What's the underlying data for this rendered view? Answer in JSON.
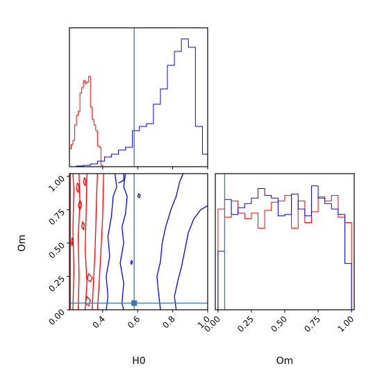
{
  "chart_data": [
    {
      "type": "histogram",
      "panel": "H0-marginal",
      "xlim": [
        0.21,
        1.0
      ],
      "ylim": [
        0,
        1
      ],
      "y_ticks_shown": false,
      "truth": 0.58,
      "series": [
        {
          "name": "",
          "color": "#ff0000",
          "bins": [
            0.21,
            0.22,
            0.23,
            0.24,
            0.25,
            0.26,
            0.27,
            0.28,
            0.29,
            0.3,
            0.31,
            0.32,
            0.33,
            0.34,
            0.35,
            0.36,
            0.37,
            0.38,
            0.39,
            0.4
          ],
          "heights": [
            0.13,
            0.16,
            0.19,
            0.3,
            0.37,
            0.4,
            0.53,
            0.57,
            0.62,
            0.6,
            0.61,
            0.65,
            0.43,
            0.34,
            0.3,
            0.26,
            0.15,
            0.14,
            0.01
          ]
        },
        {
          "name": "",
          "color": "#0000ff",
          "bins": [
            0.21,
            0.25,
            0.29,
            0.33,
            0.37,
            0.41,
            0.45,
            0.49,
            0.53,
            0.57,
            0.61,
            0.65,
            0.69,
            0.73,
            0.77,
            0.81,
            0.85,
            0.89,
            0.93,
            0.97,
            1.0
          ],
          "heights": [
            0.0,
            0.005,
            0.01,
            0.02,
            0.04,
            0.07,
            0.09,
            0.12,
            0.14,
            0.26,
            0.29,
            0.31,
            0.45,
            0.56,
            0.73,
            0.83,
            0.92,
            0.86,
            0.29,
            0.09
          ]
        }
      ]
    },
    {
      "type": "contour",
      "panel": "H0-Om-joint",
      "xlabel": "H0",
      "ylabel": "Om",
      "xlim": [
        0.21,
        1.0
      ],
      "ylim": [
        0.0,
        1.02
      ],
      "x_ticks": [
        "0.4",
        "0.6",
        "0.8",
        "1.0"
      ],
      "y_ticks": [
        "0.00",
        "0.25",
        "0.50",
        "0.75",
        "1.00"
      ],
      "truth": {
        "x": 0.58,
        "y": 0.05
      },
      "series": [
        {
          "name": "",
          "color": "#ff0000",
          "contours": [
            [
              [
                0.215,
                0.0
              ],
              [
                0.215,
                1.02
              ]
            ],
            [
              [
                0.23,
                0.0
              ],
              [
                0.235,
                0.3
              ],
              [
                0.23,
                0.6
              ],
              [
                0.235,
                0.9
              ],
              [
                0.23,
                1.02
              ]
            ],
            [
              [
                0.26,
                0.0
              ],
              [
                0.265,
                0.25
              ],
              [
                0.26,
                0.55
              ],
              [
                0.27,
                0.8
              ],
              [
                0.265,
                1.02
              ]
            ],
            [
              [
                0.3,
                0.0
              ],
              [
                0.31,
                0.2
              ],
              [
                0.3,
                0.45
              ],
              [
                0.305,
                0.7
              ],
              [
                0.31,
                1.02
              ]
            ],
            [
              [
                0.34,
                0.0
              ],
              [
                0.345,
                0.15
              ],
              [
                0.355,
                0.4
              ],
              [
                0.36,
                0.6
              ],
              [
                0.365,
                0.85
              ],
              [
                0.37,
                1.02
              ]
            ],
            [
              [
                0.37,
                0.0
              ],
              [
                0.38,
                0.2
              ],
              [
                0.39,
                0.45
              ],
              [
                0.4,
                0.7
              ],
              [
                0.405,
                1.02
              ]
            ],
            [
              [
                0.31,
                0.23
              ],
              [
                0.33,
                0.21
              ],
              [
                0.34,
                0.24
              ],
              [
                0.32,
                0.27
              ],
              [
                0.31,
                0.23
              ]
            ],
            [
              [
                0.3,
                0.05
              ],
              [
                0.32,
                0.03
              ],
              [
                0.33,
                0.07
              ],
              [
                0.31,
                0.1
              ],
              [
                0.3,
                0.05
              ]
            ],
            [
              [
                0.28,
                0.62
              ],
              [
                0.29,
                0.6
              ],
              [
                0.295,
                0.64
              ],
              [
                0.285,
                0.66
              ],
              [
                0.28,
                0.62
              ]
            ],
            [
              [
                0.26,
                0.78
              ],
              [
                0.27,
                0.75
              ],
              [
                0.28,
                0.79
              ],
              [
                0.27,
                0.82
              ],
              [
                0.26,
                0.78
              ]
            ],
            [
              [
                0.25,
                0.9
              ],
              [
                0.26,
                0.88
              ],
              [
                0.265,
                0.93
              ],
              [
                0.255,
                0.95
              ],
              [
                0.25,
                0.9
              ]
            ],
            [
              [
                0.29,
                0.95
              ],
              [
                0.3,
                0.93
              ],
              [
                0.305,
                0.97
              ],
              [
                0.295,
                0.99
              ],
              [
                0.29,
                0.95
              ]
            ],
            [
              [
                0.22,
                0.5
              ],
              [
                0.225,
                0.48
              ],
              [
                0.23,
                0.52
              ],
              [
                0.225,
                0.54
              ],
              [
                0.22,
                0.5
              ]
            ]
          ]
        },
        {
          "name": "",
          "color": "#0000ff",
          "contours": [
            [
              [
                0.42,
                0.0
              ],
              [
                0.43,
                0.1
              ],
              [
                0.42,
                0.25
              ],
              [
                0.44,
                0.4
              ],
              [
                0.43,
                0.55
              ],
              [
                0.45,
                0.7
              ],
              [
                0.46,
                0.85
              ],
              [
                0.48,
                0.92
              ],
              [
                0.47,
                1.02
              ]
            ],
            [
              [
                0.49,
                0.95
              ],
              [
                0.52,
                0.97
              ],
              [
                0.52,
                1.02
              ]
            ],
            [
              [
                0.53,
                1.02
              ],
              [
                0.52,
                0.92
              ],
              [
                0.54,
                0.85
              ],
              [
                0.53,
                0.72
              ],
              [
                0.51,
                0.62
              ],
              [
                0.52,
                0.5
              ],
              [
                0.5,
                0.35
              ],
              [
                0.52,
                0.2
              ],
              [
                0.51,
                0.05
              ],
              [
                0.52,
                0.0
              ]
            ],
            [
              [
                0.73,
                0.0
              ],
              [
                0.72,
                0.12
              ],
              [
                0.71,
                0.25
              ],
              [
                0.73,
                0.36
              ],
              [
                0.74,
                0.5
              ],
              [
                0.76,
                0.62
              ],
              [
                0.79,
                0.75
              ],
              [
                0.82,
                0.85
              ],
              [
                0.84,
                0.96
              ],
              [
                0.86,
                1.02
              ]
            ],
            [
              [
                0.82,
                0.0
              ],
              [
                0.81,
                0.1
              ],
              [
                0.83,
                0.22
              ],
              [
                0.85,
                0.32
              ],
              [
                0.87,
                0.45
              ],
              [
                0.89,
                0.58
              ],
              [
                0.92,
                0.68
              ],
              [
                0.96,
                0.75
              ],
              [
                1.0,
                0.78
              ]
            ],
            [
              [
                0.6,
                0.85
              ],
              [
                0.61,
                0.84
              ],
              [
                0.615,
                0.86
              ],
              [
                0.605,
                0.87
              ],
              [
                0.6,
                0.85
              ]
            ],
            [
              [
                0.56,
                0.35
              ],
              [
                0.565,
                0.34
              ],
              [
                0.57,
                0.36
              ],
              [
                0.565,
                0.37
              ],
              [
                0.56,
                0.35
              ]
            ]
          ]
        }
      ]
    },
    {
      "type": "histogram",
      "panel": "Om-marginal",
      "xlabel": "Om",
      "xlim": [
        -0.02,
        1.02
      ],
      "ylim": [
        0,
        1
      ],
      "x_ticks": [
        "0.00",
        "0.25",
        "0.50",
        "0.75",
        "1.00"
      ],
      "y_ticks_shown": false,
      "truth": 0.05,
      "series": [
        {
          "name": "",
          "color": "#ff0000",
          "bins": [
            0.0,
            0.05,
            0.1,
            0.15,
            0.2,
            0.25,
            0.3,
            0.35,
            0.4,
            0.45,
            0.5,
            0.55,
            0.6,
            0.65,
            0.7,
            0.75,
            0.8,
            0.85,
            0.9,
            0.95,
            1.0
          ],
          "heights": [
            0.74,
            0.68,
            0.8,
            0.71,
            0.67,
            0.71,
            0.6,
            0.73,
            0.79,
            0.8,
            0.84,
            0.6,
            0.8,
            0.64,
            0.72,
            0.83,
            0.8,
            0.84,
            0.68,
            0.64
          ]
        },
        {
          "name": "",
          "color": "#0000ff",
          "bins": [
            0.0,
            0.05,
            0.1,
            0.15,
            0.2,
            0.25,
            0.3,
            0.35,
            0.4,
            0.45,
            0.5,
            0.55,
            0.6,
            0.65,
            0.7,
            0.75,
            0.8,
            0.85,
            0.9,
            0.95,
            1.0
          ],
          "heights": [
            0.43,
            0.81,
            0.7,
            0.75,
            0.78,
            0.82,
            0.89,
            0.84,
            0.82,
            0.69,
            0.7,
            0.85,
            0.74,
            0.69,
            0.91,
            0.82,
            0.78,
            0.74,
            0.7,
            0.34
          ]
        }
      ]
    }
  ]
}
